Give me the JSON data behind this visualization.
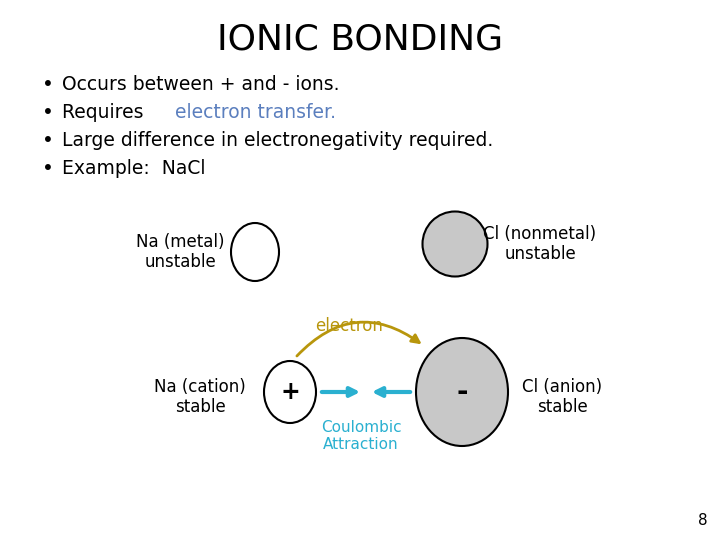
{
  "title": "IONIC BONDING",
  "title_fontsize": 26,
  "title_fontweight": "normal",
  "bg_color": "#ffffff",
  "bullet_items": [
    {
      "text": "Occurs between + and - ions.",
      "color": "#000000"
    },
    {
      "text_parts": [
        {
          "text": "Requires ",
          "color": "#000000"
        },
        {
          "text": "electron transfer.",
          "color": "#5b7fbe"
        }
      ]
    },
    {
      "text": "Large difference in electronegativity required.",
      "color": "#000000"
    },
    {
      "text": "Example:  NaCl",
      "color": "#000000"
    }
  ],
  "bullet_fontsize": 13.5,
  "na_unstable_label": "Na (metal)\nunstable",
  "cl_unstable_label": "Cl (nonmetal)\nunstable",
  "na_stable_label": "Na (cation)\nstable",
  "cl_stable_label": "Cl (anion)\nstable",
  "electron_label": "electron",
  "coulombic_label": "Coulombic\nAttraction",
  "small_ellipse_color": "#ffffff",
  "small_ellipse_edge": "#000000",
  "large_ellipse_color": "#c8c8c8",
  "large_ellipse_edge": "#000000",
  "arrow_electron_color": "#b8960c",
  "arrow_coulombic_color": "#2ab0d0",
  "label_fontsize": 12,
  "page_number": "8"
}
